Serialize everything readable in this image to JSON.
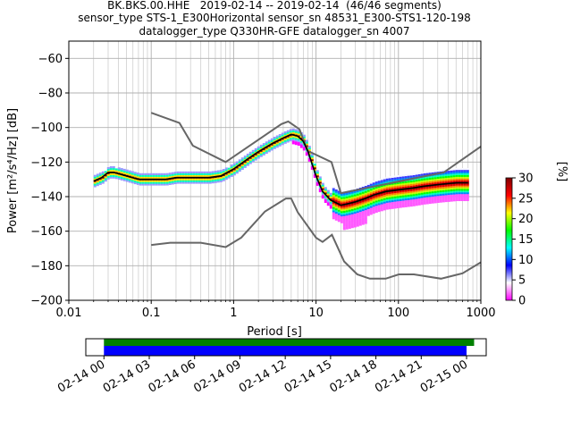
{
  "title_lines": [
    "BK.BKS.00.HHE   2019-02-14 -- 2019-02-14  (46/46 segments)",
    "sensor_type STS-1_E300Horizontal sensor_sn 48531_E300-STS1-120-198",
    "datalogger_type Q330HR-GFE datalogger_sn 4007"
  ],
  "chart_data": [
    {
      "type": "heatmap",
      "title": "",
      "xlabel": "Period [s]",
      "ylabel": "Power [m²/s⁴/Hz] [dB]",
      "x_scale": "log",
      "xlim": [
        0.01,
        1000
      ],
      "ylim": [
        -200,
        -50
      ],
      "x_ticks": [
        "0.01",
        "0.1",
        "1",
        "10",
        "100",
        "1000"
      ],
      "y_ticks": [
        "−200",
        "−180",
        "−160",
        "−140",
        "−120",
        "−100",
        "−80",
        "−60"
      ],
      "grid": true,
      "colorbar": {
        "label": "[%]",
        "range": [
          0,
          30
        ],
        "ticks": [
          "0",
          "5",
          "10",
          "15",
          "20",
          "25",
          "30"
        ],
        "colors": [
          "#ff00ff",
          "#ffffff",
          "#0000ff",
          "#00ffff",
          "#00ff00",
          "#ffff00",
          "#ff0000",
          "#800000"
        ]
      },
      "series": [
        {
          "role": "mode",
          "x": [
            0.02,
            0.025,
            0.03,
            0.035,
            0.05,
            0.07,
            0.1,
            0.15,
            0.2,
            0.3,
            0.5,
            0.7,
            1,
            1.5,
            2,
            3,
            4,
            5,
            6,
            7,
            8,
            10,
            12,
            15,
            20,
            25,
            30,
            40,
            50,
            70,
            100,
            150,
            200,
            300,
            500,
            700
          ],
          "y": [
            -131,
            -129,
            -126,
            -126,
            -128,
            -130,
            -130,
            -130,
            -129,
            -129,
            -129,
            -128,
            -124,
            -118,
            -114,
            -109,
            -106,
            -104,
            -105,
            -108,
            -114,
            -128,
            -137,
            -142,
            -145,
            -144,
            -143,
            -141,
            -139,
            -137,
            -136,
            -135,
            -134,
            -133,
            -132,
            -132
          ]
        },
        {
          "role": "high-noise-model",
          "x": [
            0.1,
            0.22,
            0.32,
            0.8,
            3.8,
            4.6,
            6.3,
            7.9,
            15.4,
            20,
            354.8,
            1000
          ],
          "y": [
            -91.5,
            -97.4,
            -110.5,
            -120,
            -98,
            -96.5,
            -101,
            -113.5,
            -120,
            -138,
            -126,
            -111
          ]
        },
        {
          "role": "low-noise-model",
          "x": [
            0.1,
            0.17,
            0.4,
            0.8,
            1.24,
            2.4,
            4.3,
            5,
            6,
            10,
            12,
            15.6,
            21.9,
            31.6,
            45,
            70,
            101,
            154,
            328,
            600,
            1000
          ],
          "y": [
            -168,
            -166.7,
            -166.7,
            -169.2,
            -163.7,
            -148.6,
            -141.1,
            -141.1,
            -149,
            -163.8,
            -166.2,
            -162.1,
            -177.5,
            -185,
            -187.5,
            -187.5,
            -185,
            -185,
            -187.5,
            -184.4,
            -178
          ]
        }
      ]
    },
    {
      "type": "timeline",
      "x_ticks": [
        "02-14 00",
        "02-14 03",
        "02-14 06",
        "02-14 09",
        "02-14 12",
        "02-14 15",
        "02-14 18",
        "02-14 21",
        "02-15 00"
      ],
      "x_range_hours": [
        -1.2,
        25.3
      ],
      "bars": [
        {
          "role": "data-available",
          "color": "#008000",
          "start_hour": 0,
          "end_hour": 24.5
        },
        {
          "role": "segments-used",
          "color": "#0000ff",
          "start_hour": 0,
          "end_hour": 24.0
        }
      ]
    }
  ]
}
